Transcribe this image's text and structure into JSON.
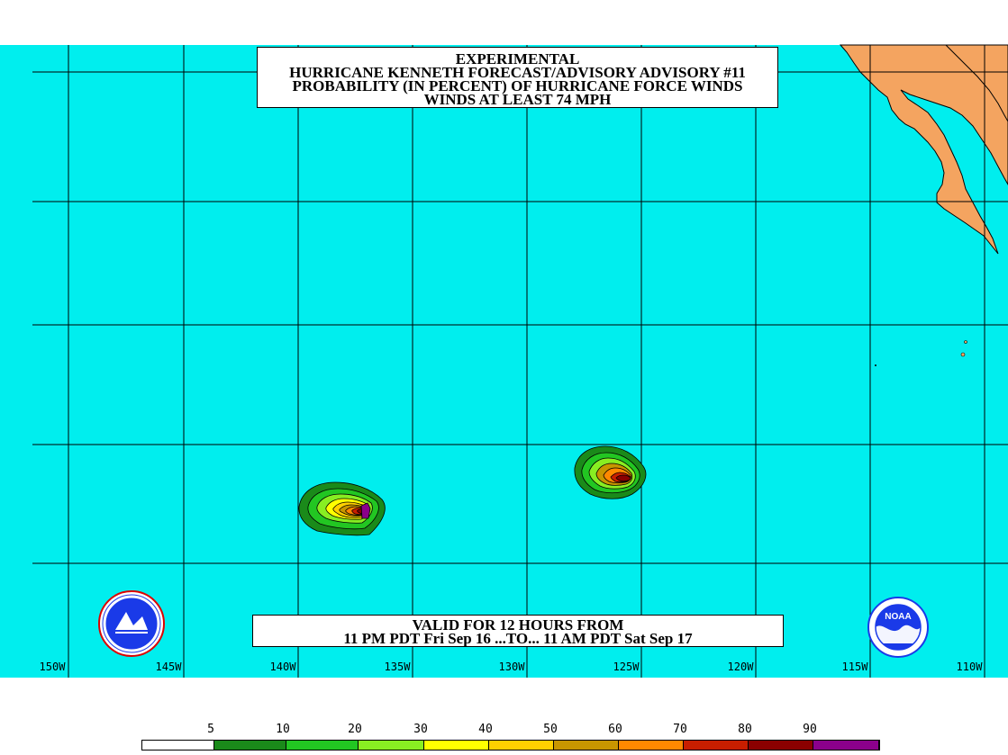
{
  "title": {
    "line1": "EXPERIMENTAL",
    "line2": "HURRICANE KENNETH FORECAST/ADVISORY ADVISORY #11",
    "line3": "PROBABILITY (IN PERCENT) OF HURRICANE FORCE WINDS",
    "line4": "WINDS AT LEAST 74 MPH"
  },
  "valid": {
    "line1": "VALID FOR 12 HOURS FROM",
    "line2": "11 PM PDT Fri Sep 16 ...TO... 11 AM PDT Sat Sep 17"
  },
  "longitude_labels": [
    "150W",
    "145W",
    "140W",
    "135W",
    "130W",
    "125W",
    "120W",
    "115W",
    "110W"
  ],
  "scale": {
    "labels": [
      "5",
      "10",
      "20",
      "30",
      "40",
      "50",
      "60",
      "70",
      "80",
      "90"
    ],
    "colors": [
      "#ffffff",
      "#1a8a1a",
      "#22c622",
      "#88ee22",
      "#ffff00",
      "#ffd000",
      "#c89600",
      "#ff8800",
      "#c81e00",
      "#8b0000",
      "#8b008b"
    ]
  },
  "colors": {
    "ocean": "#00eeee",
    "land": "#f4a460",
    "grid": "#000000"
  },
  "logos": {
    "left": "nws-logo",
    "right": "noaa-logo",
    "right_text": "NOAA"
  }
}
